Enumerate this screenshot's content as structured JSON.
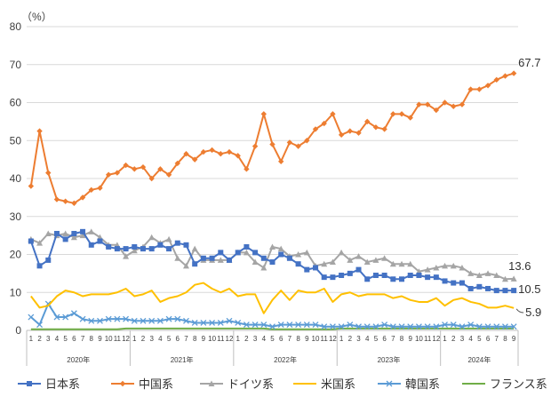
{
  "chart_data": {
    "type": "line",
    "unit_label": "（%）",
    "ylim": [
      0,
      80
    ],
    "yticks": [
      0,
      10,
      20,
      30,
      40,
      50,
      60,
      70,
      80
    ],
    "grid": true,
    "legend_position": "bottom",
    "months": [
      1,
      2,
      3,
      4,
      5,
      6,
      7,
      8,
      9,
      10,
      11,
      12,
      1,
      2,
      3,
      4,
      5,
      6,
      7,
      8,
      9,
      10,
      11,
      12,
      1,
      2,
      3,
      4,
      5,
      6,
      7,
      8,
      9,
      10,
      11,
      12,
      1,
      2,
      3,
      4,
      5,
      6,
      7,
      8,
      9,
      10,
      11,
      12,
      1,
      2,
      3,
      4,
      5,
      6,
      7,
      8,
      9
    ],
    "years": [
      {
        "label": "2020年",
        "start": 0,
        "count": 12
      },
      {
        "label": "2021年",
        "start": 12,
        "count": 12
      },
      {
        "label": "2022年",
        "start": 24,
        "count": 12
      },
      {
        "label": "2023年",
        "start": 36,
        "count": 12
      },
      {
        "label": "2024年",
        "start": 48,
        "count": 9
      }
    ],
    "series": [
      {
        "name": "日本系",
        "color": "#4472C4",
        "marker": "square",
        "values": [
          23.5,
          17,
          18.5,
          25.5,
          24,
          25.5,
          26,
          22.5,
          23.5,
          22,
          21.5,
          21.5,
          22,
          21.5,
          21.5,
          22.5,
          21.5,
          23,
          22.5,
          17.5,
          19,
          19,
          20.5,
          18.5,
          20.5,
          22,
          20.5,
          19,
          18,
          20,
          19,
          17.5,
          16,
          16.5,
          14,
          14,
          14.5,
          15,
          16,
          13.5,
          14.5,
          14.5,
          13.5,
          13.5,
          14.5,
          14.5,
          14,
          14,
          13,
          12.5,
          12.5,
          11,
          11.5,
          11,
          10.5,
          10.5,
          10.5
        ]
      },
      {
        "name": "中国系",
        "color": "#ED7D31",
        "marker": "diamond",
        "values": [
          38,
          52.5,
          41.5,
          34.5,
          34,
          33.5,
          35,
          37,
          37.5,
          41,
          41.5,
          43.5,
          42.5,
          43,
          40,
          42.5,
          41,
          44,
          46.5,
          45,
          47,
          47.5,
          46.5,
          47,
          46,
          42.5,
          48.5,
          57,
          49,
          44.5,
          49.5,
          48.5,
          50,
          53,
          54.5,
          57,
          51.5,
          52.5,
          52,
          55,
          53.5,
          53,
          57,
          57,
          56,
          59.5,
          59.5,
          58,
          60,
          59,
          59.5,
          63.5,
          63.5,
          64.5,
          66,
          67,
          67.7
        ]
      },
      {
        "name": "ドイツ系",
        "color": "#A5A5A5",
        "marker": "triangle",
        "values": [
          24,
          23,
          25.5,
          25,
          25.5,
          24.5,
          25,
          26,
          24.5,
          22.5,
          22.5,
          19.5,
          21,
          22,
          24.5,
          23,
          24,
          19,
          17,
          21.5,
          18.5,
          18.5,
          18.5,
          18.5,
          20.5,
          20.5,
          18,
          16.5,
          22,
          21.5,
          19.5,
          20,
          20.5,
          17,
          17.5,
          18,
          20.5,
          18.5,
          19.5,
          18,
          18.5,
          19,
          17.5,
          17.5,
          17.5,
          15.5,
          16,
          16.5,
          17,
          17,
          16.5,
          15,
          14.5,
          15,
          14.5,
          13.5,
          13.6
        ]
      },
      {
        "name": "米国系",
        "color": "#FFC000",
        "marker": "none",
        "values": [
          9,
          6,
          6.5,
          9,
          10.5,
          10,
          9,
          9.5,
          9.5,
          9.5,
          10,
          11,
          9,
          9.5,
          10.5,
          7.5,
          8.5,
          9,
          10,
          12,
          12.5,
          11,
          10,
          11,
          9,
          9.5,
          9.5,
          4.5,
          8,
          10.5,
          8,
          10.5,
          10,
          10,
          11,
          7.5,
          9.5,
          10,
          9,
          9.5,
          9.5,
          9.5,
          8.5,
          9,
          8,
          7.5,
          7.5,
          8.5,
          6.5,
          8,
          8.5,
          7.5,
          7,
          6,
          6,
          6.5,
          5.9
        ]
      },
      {
        "name": "韓国系",
        "color": "#5B9BD5",
        "marker": "cross",
        "values": [
          3.5,
          1.5,
          7,
          3.5,
          3.5,
          4.5,
          3,
          2.5,
          2.5,
          3,
          3,
          3,
          2.5,
          2.5,
          2.5,
          2.5,
          3,
          3,
          2.5,
          2,
          2,
          2,
          2,
          2.5,
          2,
          1.5,
          1.5,
          1.5,
          1,
          1.5,
          1.5,
          1.5,
          1.5,
          1.5,
          1,
          1,
          1,
          1.5,
          1,
          1,
          1,
          1.5,
          1,
          1,
          1,
          1,
          1,
          1,
          1.5,
          1.5,
          1,
          1.5,
          1,
          1,
          1,
          1,
          1
        ]
      },
      {
        "name": "フランス系",
        "color": "#70AD47",
        "marker": "none",
        "values": [
          0.3,
          0.3,
          0.3,
          0.3,
          0.3,
          0.3,
          0.3,
          0.3,
          0.3,
          0.3,
          0.3,
          0.5,
          0.5,
          0.5,
          0.5,
          0.5,
          0.5,
          0.5,
          0.5,
          0.5,
          0.5,
          0.5,
          0.5,
          0.5,
          0.5,
          0.5,
          0.5,
          0.5,
          0.3,
          0.3,
          0.3,
          0.3,
          0.3,
          0.3,
          0.3,
          0.3,
          0.5,
          0.5,
          0.5,
          0.5,
          0.5,
          0.5,
          0.5,
          0.5,
          0.5,
          0.5,
          0.5,
          0.5,
          0.5,
          0.5,
          0.5,
          0.5,
          0.5,
          0.5,
          0.5,
          0.5,
          0.5
        ]
      }
    ],
    "end_labels": [
      {
        "series": "中国系",
        "text": "67.7"
      },
      {
        "series": "ドイツ系",
        "text": "13.6"
      },
      {
        "series": "日本系",
        "text": "10.5"
      },
      {
        "series": "米国系",
        "text": "5.9"
      }
    ]
  }
}
